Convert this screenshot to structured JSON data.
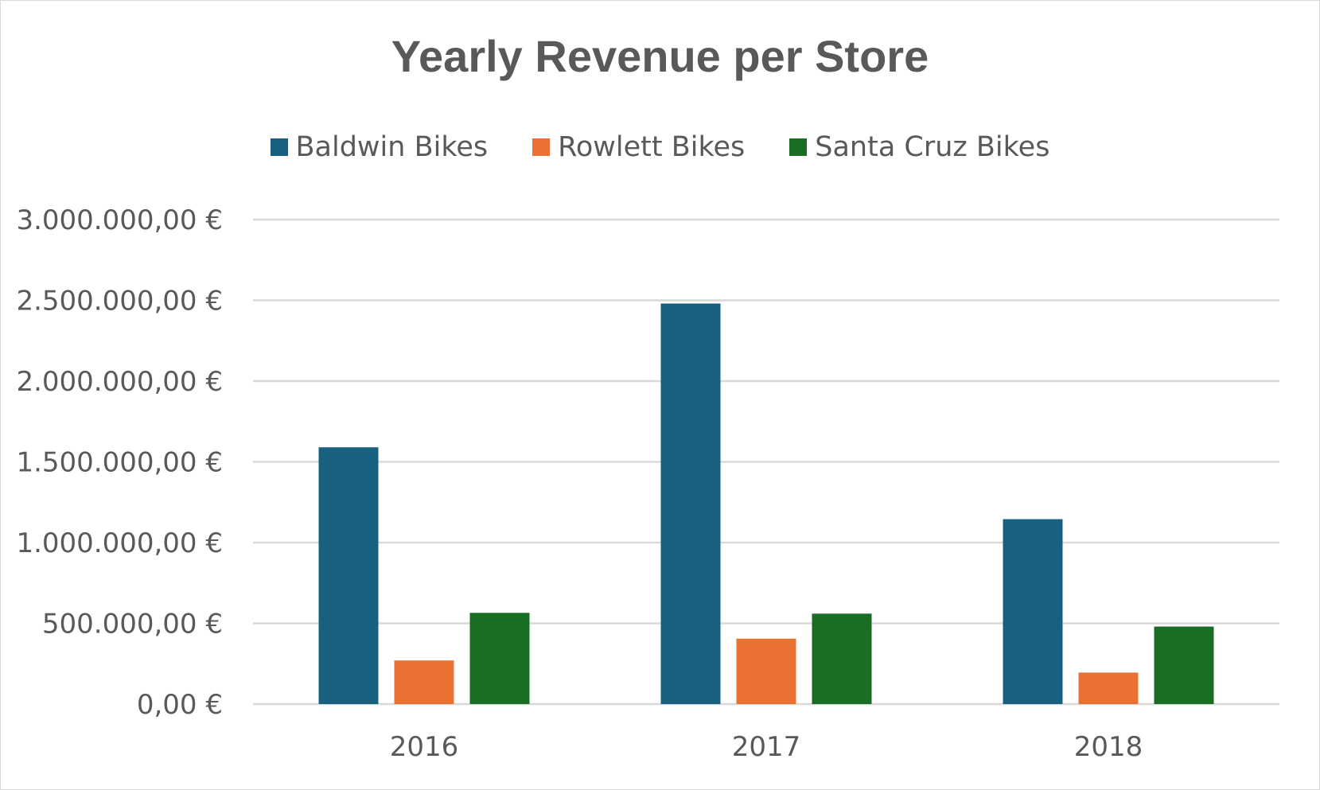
{
  "chart_data": {
    "type": "bar",
    "title": "Yearly Revenue per Store",
    "xlabel": "",
    "ylabel": "",
    "categories": [
      "2016",
      "2017",
      "2018"
    ],
    "series": [
      {
        "name": "Baldwin Bikes",
        "color": "#17607f",
        "values": [
          1590000,
          2480000,
          1145000
        ]
      },
      {
        "name": "Rowlett Bikes",
        "color": "#e97132",
        "values": [
          270000,
          405000,
          195000
        ]
      },
      {
        "name": "Santa Cruz Bikes",
        "color": "#1a6e24",
        "values": [
          565000,
          560000,
          480000
        ]
      }
    ],
    "ylim": [
      0,
      3000000
    ],
    "y_ticks": [
      0,
      500000,
      1000000,
      1500000,
      2000000,
      2500000,
      3000000
    ],
    "y_tick_labels": [
      "0,00 €",
      "500.000,00 €",
      "1.000.000,00 €",
      "1.500.000,00 €",
      "2.000.000,00 €",
      "2.500.000,00 €",
      "3.000.000,00 €"
    ],
    "grid": true,
    "legend_position": "top"
  }
}
